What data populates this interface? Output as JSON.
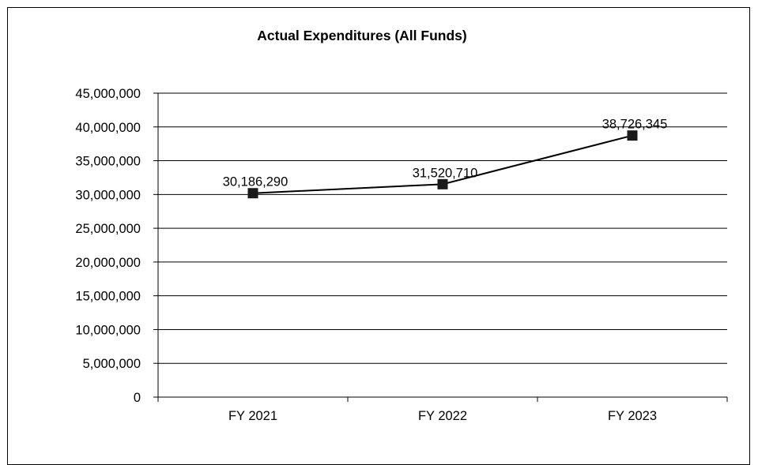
{
  "chart_data": {
    "type": "line",
    "title": "Actual Expenditures (All Funds)",
    "categories": [
      "FY 2021",
      "FY 2022",
      "FY 2023"
    ],
    "values": [
      30186290,
      31520710,
      38726345
    ],
    "data_labels": [
      "30,186,290",
      "31,520,710",
      "38,726,345"
    ],
    "ylim": [
      0,
      45000000
    ],
    "yticks": [
      0,
      5000000,
      10000000,
      15000000,
      20000000,
      25000000,
      30000000,
      35000000,
      40000000,
      45000000
    ],
    "ytick_labels": [
      "0",
      "5,000,000",
      "10,000,000",
      "15,000,000",
      "20,000,000",
      "25,000,000",
      "30,000,000",
      "35,000,000",
      "40,000,000",
      "45,000,000"
    ],
    "grid": true,
    "legend": "none",
    "colors": {
      "line": "#000000",
      "marker": "#1a1a1a",
      "grid": "#000000"
    }
  }
}
